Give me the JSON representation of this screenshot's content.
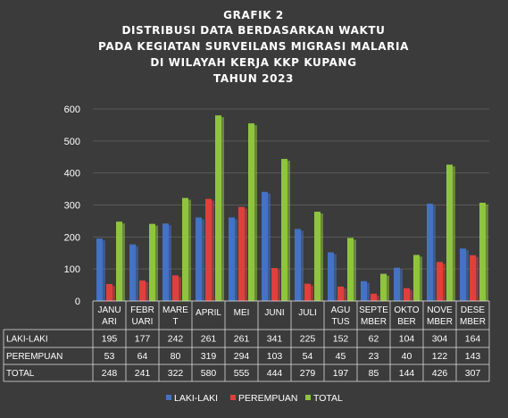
{
  "chart_data": {
    "type": "bar",
    "title_lines": [
      "GRAFIK 2",
      "DISTRIBUSI DATA BERDASARKAN WAKTU",
      "PADA KEGIATAN SURVEILANS MIGRASI MALARIA",
      "DI WILAYAH KERJA KKP KUPANG",
      "TAHUN 2023"
    ],
    "categories": [
      "JANUARI",
      "FEBRUARI",
      "MARET",
      "APRIL",
      "MEI",
      "JUNI",
      "JULI",
      "AGUSTUS",
      "SEPTEMBER",
      "OKTOBER",
      "NOVEMBER",
      "DESEMBER"
    ],
    "category_label_lines": [
      [
        "JANU",
        "ARI"
      ],
      [
        "FEBR",
        "UARI"
      ],
      [
        "MARE",
        "T"
      ],
      [
        "APRIL"
      ],
      [
        "MEI"
      ],
      [
        "JUNI"
      ],
      [
        "JULI"
      ],
      [
        "AGU",
        "TUS"
      ],
      [
        "SEPTE",
        "MBER"
      ],
      [
        "OKTO",
        "BER"
      ],
      [
        "NOVE",
        "MBER"
      ],
      [
        "DESE",
        "MBER"
      ]
    ],
    "series": [
      {
        "name": "LAKI-LAKI",
        "color": "#4472c4",
        "values": [
          195,
          177,
          242,
          261,
          261,
          341,
          225,
          152,
          62,
          104,
          304,
          164
        ]
      },
      {
        "name": "PEREMPUAN",
        "color": "#e0403c",
        "values": [
          53,
          64,
          80,
          319,
          294,
          103,
          54,
          45,
          23,
          40,
          122,
          143
        ]
      },
      {
        "name": "TOTAL",
        "color": "#8fc43e",
        "values": [
          248,
          241,
          322,
          580,
          555,
          444,
          279,
          197,
          85,
          144,
          426,
          307
        ]
      }
    ],
    "ylim": [
      0,
      600
    ],
    "yticks": [
      0,
      100,
      200,
      300,
      400,
      500,
      600
    ],
    "grid": true,
    "legend_position": "bottom"
  }
}
